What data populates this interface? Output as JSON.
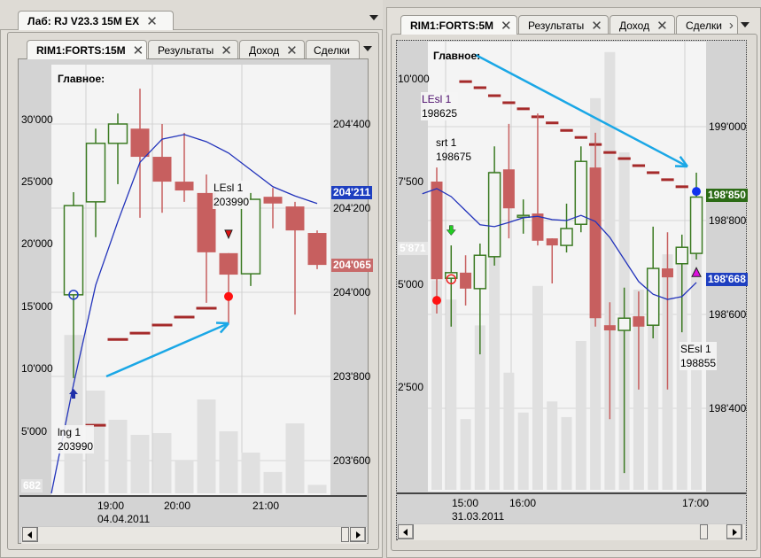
{
  "left_window": {
    "outer_tab": "Лаб: RJ V23.3 15M EX",
    "inner_tabs": [
      {
        "label": "RIM1:FORTS:15M",
        "active": true
      },
      {
        "label": "Результаты"
      },
      {
        "label": "Доход"
      },
      {
        "label": "Сделки"
      }
    ],
    "pane_title": "Главное:",
    "annotations": [
      {
        "name": "LEsl 1",
        "value": "203990"
      },
      {
        "name": "lng 1",
        "value": "203990"
      }
    ],
    "badges": {
      "ma_last": "204'211",
      "close_last": "204'065",
      "volume_last": "682"
    },
    "time_labels": [
      "19:00",
      "20:00",
      "21:00"
    ],
    "date_label": "04.04.2011"
  },
  "right_window": {
    "inner_tabs": [
      {
        "label": "RIM1:FORTS:5M",
        "active": true
      },
      {
        "label": "Результаты"
      },
      {
        "label": "Доход"
      },
      {
        "label": "Сделки"
      }
    ],
    "pane_title": "Главное:",
    "annotations": [
      {
        "name": "LEsl 1",
        "value": "198625"
      },
      {
        "name": "srt 1",
        "value": "198675"
      },
      {
        "name": "SEsl 1",
        "value": "198855"
      }
    ],
    "badges": {
      "close_last": "198'850",
      "ma_last": "198'668",
      "volume_last": "5'871"
    },
    "time_labels": [
      "15:00",
      "16:00",
      "17:00"
    ],
    "date_label": "31.03.2011"
  },
  "colors": {
    "up": "#3b7a22",
    "down": "#c75f5f",
    "ma": "#2233bb",
    "stop": "#a52a2a",
    "volume": "#e0e0e0",
    "annotation_arrow": "#1aa7e6",
    "badge_blue": "#1e3fc0",
    "badge_red": "#c86a6a",
    "badge_green": "#2c6b16"
  },
  "icons": {
    "tab_close": "close-icon",
    "tab_menu": "chevron-down-icon",
    "scroll_left": "arrow-left-icon",
    "scroll_right": "arrow-right-icon"
  },
  "chart_data": [
    {
      "type": "candlestick",
      "symbol": "RIM1:FORTS:15M",
      "price_ticks": [
        "204'400",
        "204'200",
        "204'000",
        "203'800",
        "203'600"
      ],
      "price_tick_values": [
        204400,
        204200,
        204000,
        203800,
        203600
      ],
      "volume_ticks": [
        "30'000",
        "25'000",
        "20'000",
        "15'000",
        "10'000",
        "5'000"
      ],
      "volume_tick_values": [
        30000,
        25000,
        20000,
        15000,
        10000,
        5000
      ],
      "candles": [
        {
          "o": 203994,
          "h": 204238,
          "l": 203796,
          "c": 204206
        },
        {
          "o": 204215,
          "h": 204389,
          "l": 204131,
          "c": 204354
        },
        {
          "o": 204354,
          "h": 204425,
          "l": 204257,
          "c": 204400
        },
        {
          "o": 204389,
          "h": 204484,
          "l": 204177,
          "c": 204322
        },
        {
          "o": 204322,
          "h": 204400,
          "l": 204189,
          "c": 204263
        },
        {
          "o": 204263,
          "h": 204379,
          "l": 204215,
          "c": 204242
        },
        {
          "o": 204236,
          "h": 204280,
          "l": 203975,
          "c": 204095
        },
        {
          "o": 204093,
          "h": 204093,
          "l": 203926,
          "c": 204042
        },
        {
          "o": 204044,
          "h": 204236,
          "l": 204015,
          "c": 204221
        },
        {
          "o": 204227,
          "h": 204248,
          "l": 204152,
          "c": 204211
        },
        {
          "o": 204204,
          "h": 204215,
          "l": 203947,
          "c": 204147
        },
        {
          "o": 204141,
          "h": 204147,
          "l": 204055,
          "c": 204065
        }
      ],
      "volumes": [
        12700,
        8240,
        5900,
        4690,
        4830,
        2630,
        7530,
        4970,
        3270,
        1710,
        5610,
        682
      ],
      "moving_average": [
        203522,
        203781,
        204017,
        204168,
        204309,
        204364,
        204375,
        204358,
        204331,
        204291,
        204251,
        204229,
        204211
      ],
      "stop_levels": [
        {
          "i": 1,
          "p": 203684
        },
        {
          "i": 2,
          "p": 203888
        },
        {
          "i": 3,
          "p": 203903
        },
        {
          "i": 4,
          "p": 203922
        },
        {
          "i": 5,
          "p": 203941
        },
        {
          "i": 6,
          "p": 203962
        }
      ],
      "markers": [
        {
          "i": 0,
          "p": 203994,
          "kind": "circle-open",
          "color": "#1e3fc0"
        },
        {
          "i": 0,
          "p": 203758,
          "kind": "arrow-up",
          "color": "#1e2fa8"
        },
        {
          "i": 7,
          "p": 204137,
          "kind": "triangle-down",
          "color": "#dd1111"
        },
        {
          "i": 7,
          "p": 203990,
          "kind": "dot",
          "color": "#ff1111"
        }
      ]
    },
    {
      "type": "candlestick",
      "symbol": "RIM1:FORTS:5M",
      "price_ticks": [
        "199'000",
        "198'800",
        "198'600",
        "198'400"
      ],
      "price_tick_values": [
        199000,
        198800,
        198600,
        198400
      ],
      "volume_ticks": [
        "10'000",
        "7'500",
        "5'000",
        "2'500"
      ],
      "volume_tick_values": [
        10000,
        7500,
        5000,
        2500
      ],
      "candles": [
        {
          "o": 198883,
          "h": 198913,
          "l": 198602,
          "c": 198675
        },
        {
          "o": 198677,
          "h": 198747,
          "l": 198574,
          "c": 198689
        },
        {
          "o": 198689,
          "h": 198726,
          "l": 198619,
          "c": 198655
        },
        {
          "o": 198655,
          "h": 198751,
          "l": 198515,
          "c": 198726
        },
        {
          "o": 198723,
          "h": 198958,
          "l": 198704,
          "c": 198902
        },
        {
          "o": 198909,
          "h": 199006,
          "l": 198762,
          "c": 198826
        },
        {
          "o": 198808,
          "h": 198845,
          "l": 198772,
          "c": 198811
        },
        {
          "o": 198815,
          "h": 199028,
          "l": 198747,
          "c": 198757
        },
        {
          "o": 198762,
          "h": 198762,
          "l": 198666,
          "c": 198747
        },
        {
          "o": 198747,
          "h": 198836,
          "l": 198732,
          "c": 198783
        },
        {
          "o": 198792,
          "h": 198958,
          "l": 198775,
          "c": 198926
        },
        {
          "o": 198913,
          "h": 198987,
          "l": 198574,
          "c": 198592
        },
        {
          "o": 198577,
          "h": 198626,
          "l": 198377,
          "c": 198566
        },
        {
          "o": 198566,
          "h": 198657,
          "l": 198262,
          "c": 198592
        },
        {
          "o": 198596,
          "h": 198649,
          "l": 198440,
          "c": 198574
        },
        {
          "o": 198577,
          "h": 198787,
          "l": 198549,
          "c": 198698
        },
        {
          "o": 198698,
          "h": 198775,
          "l": 198440,
          "c": 198679
        },
        {
          "o": 198708,
          "h": 198770,
          "l": 198562,
          "c": 198743
        },
        {
          "o": 198730,
          "h": 198902,
          "l": 198717,
          "c": 198850
        }
      ],
      "volumes": [
        5100,
        4630,
        1720,
        4000,
        7760,
        2850,
        1880,
        4960,
        2150,
        1770,
        3620,
        9530,
        10650,
        8210,
        4870,
        4890,
        5730,
        5710,
        5871
      ],
      "moving_average": [
        198857,
        198868,
        198851,
        198821,
        198791,
        198787,
        198796,
        198806,
        198809,
        198802,
        198800,
        198811,
        198798,
        198764,
        198717,
        198670,
        198643,
        198632,
        198638,
        198668
      ],
      "stop_levels": [
        {
          "i": 2,
          "p": 199096
        },
        {
          "i": 3,
          "p": 199083
        },
        {
          "i": 4,
          "p": 199066
        },
        {
          "i": 5,
          "p": 199051
        },
        {
          "i": 6,
          "p": 199038
        },
        {
          "i": 7,
          "p": 199021
        },
        {
          "i": 8,
          "p": 199008
        },
        {
          "i": 9,
          "p": 198992
        },
        {
          "i": 10,
          "p": 198977
        },
        {
          "i": 11,
          "p": 198962
        },
        {
          "i": 12,
          "p": 198945
        },
        {
          "i": 13,
          "p": 198932
        },
        {
          "i": 14,
          "p": 198917
        },
        {
          "i": 15,
          "p": 198902
        },
        {
          "i": 16,
          "p": 198887
        },
        {
          "i": 17,
          "p": 198872
        }
      ],
      "markers": [
        {
          "i": 0,
          "p": 198630,
          "kind": "dot",
          "color": "#ff1111"
        },
        {
          "i": 1,
          "p": 198675,
          "kind": "circle-open",
          "color": "#ee2222"
        },
        {
          "i": 1,
          "p": 198780,
          "kind": "arrow-down",
          "color": "#22cc22"
        },
        {
          "i": 18,
          "p": 198862,
          "kind": "dot",
          "color": "#1133ee"
        },
        {
          "i": 18,
          "p": 198690,
          "kind": "triangle-up",
          "color": "#dd11dd"
        }
      ]
    }
  ]
}
